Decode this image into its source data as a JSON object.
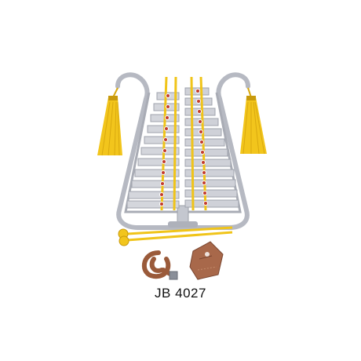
{
  "product": {
    "model_label": "JB 4027"
  },
  "colors": {
    "background": "#ffffff",
    "frame": "#b9bcc4",
    "bar": "#d2d4da",
    "rail": "#f1c419",
    "tassel": "#f0c419",
    "rivet": "#c0392b",
    "strap": "#9a5a3a"
  },
  "items": [
    "glockenspiel-bell-lyre",
    "tassel-left",
    "tassel-right",
    "mallet-pair",
    "neck-strap",
    "belt-holder"
  ]
}
